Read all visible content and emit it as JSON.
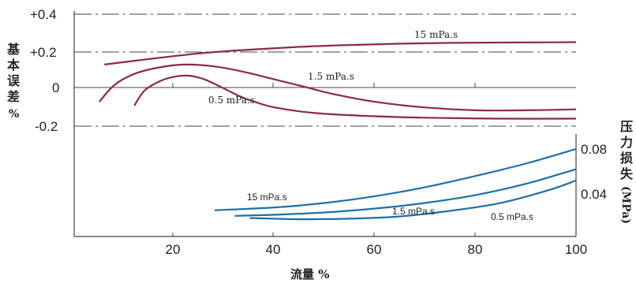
{
  "chart_data": [
    {
      "type": "line",
      "panel": "top",
      "ylabel": "基本误差%",
      "xlim": [
        0,
        100
      ],
      "ylim": [
        -0.2,
        0.4
      ],
      "y_ticks": [
        "+0.4",
        "+0.2",
        "0",
        "-0.2"
      ],
      "series": [
        {
          "name": "15 mPa.s",
          "color": "#8a2a4a",
          "x": [
            6,
            15,
            25,
            35,
            45,
            55,
            65,
            75,
            85,
            95,
            100
          ],
          "y": [
            0.13,
            0.16,
            0.19,
            0.21,
            0.225,
            0.235,
            0.242,
            0.246,
            0.248,
            0.249,
            0.25
          ]
        },
        {
          "name": "1.5 mPa.s",
          "color": "#8a2a4a",
          "x": [
            5,
            8,
            12,
            17,
            22,
            28,
            34,
            40,
            46,
            52,
            60,
            70,
            80,
            90,
            100
          ],
          "y": [
            -0.07,
            0.02,
            0.08,
            0.115,
            0.13,
            0.12,
            0.09,
            0.05,
            0.01,
            -0.03,
            -0.07,
            -0.1,
            -0.115,
            -0.115,
            -0.11
          ]
        },
        {
          "name": "0.5 mPa.s",
          "color": "#8a2a4a",
          "x": [
            12,
            14,
            17,
            20,
            23,
            26,
            30,
            33,
            36,
            40,
            48,
            58,
            70,
            85,
            100
          ],
          "y": [
            -0.09,
            -0.01,
            0.04,
            0.065,
            0.07,
            0.05,
            0.0,
            -0.04,
            -0.07,
            -0.1,
            -0.13,
            -0.145,
            -0.155,
            -0.16,
            -0.16
          ]
        }
      ]
    },
    {
      "type": "line",
      "panel": "bottom",
      "ylabel": "压力损失(MPa)",
      "xlabel": "流量 %",
      "x_ticks": [
        "20",
        "40",
        "60",
        "80",
        "100"
      ],
      "xlim": [
        0,
        100
      ],
      "ylim": [
        0.02,
        0.09
      ],
      "y_ticks": [
        "0.08",
        "0.04"
      ],
      "series": [
        {
          "name": "15 mPa.s",
          "color": "#1e6fa8",
          "x": [
            28,
            40,
            50,
            60,
            70,
            80,
            90,
            100
          ],
          "y": [
            0.0255,
            0.028,
            0.032,
            0.038,
            0.046,
            0.056,
            0.067,
            0.08
          ]
        },
        {
          "name": "1.5 mPa.s",
          "color": "#1e6fa8",
          "x": [
            32,
            40,
            50,
            60,
            70,
            80,
            90,
            100
          ],
          "y": [
            0.0205,
            0.0215,
            0.0235,
            0.027,
            0.032,
            0.039,
            0.049,
            0.062
          ]
        },
        {
          "name": "0.5 mPa.s",
          "color": "#1e6fa8",
          "x": [
            35,
            45,
            55,
            65,
            75,
            85,
            95,
            100
          ],
          "y": [
            0.0185,
            0.0175,
            0.018,
            0.02,
            0.025,
            0.032,
            0.044,
            0.052
          ]
        }
      ]
    }
  ],
  "labels": {
    "ylabel_top_chars": [
      "基",
      "本",
      "误",
      "差",
      "%"
    ],
    "ylabel_right_chars": [
      "压",
      "力",
      "损",
      "失"
    ],
    "ylabel_right_unit": "(MPa)",
    "xlabel": "流量 %",
    "top_curve_labels": [
      "15 mPa.s",
      "1.5 mPa.s",
      "0.5 mPa.s"
    ],
    "bottom_curve_labels": [
      "15 mPa.s",
      "1.5 mPa.s",
      "0.5 mPa.s"
    ]
  }
}
